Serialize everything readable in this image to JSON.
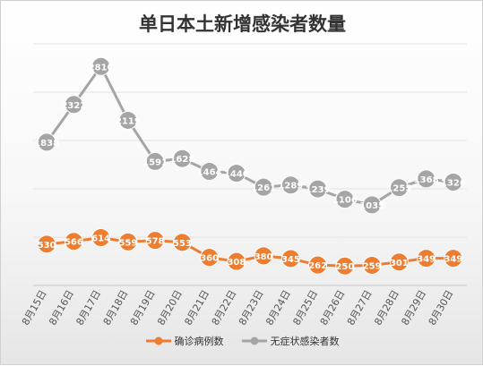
{
  "chart_data": {
    "type": "line",
    "title": "单日本土新增感染者数量",
    "xlabel": "",
    "ylabel": "",
    "grid": true,
    "legend": "bottom",
    "categories": [
      "8月15日",
      "8月16日",
      "8月17日",
      "8月18日",
      "8月19日",
      "8月20日",
      "8月21日",
      "8月22日",
      "8月23日",
      "8月24日",
      "8月25日",
      "8月26日",
      "8月27日",
      "8月28日",
      "8月29日",
      "8月30日"
    ],
    "series": [
      {
        "name": "确诊病例数",
        "color": "#ED7D31",
        "values": [
          530,
          566,
          614,
          559,
          578,
          553,
          360,
          308,
          380,
          345,
          262,
          250,
          259,
          301,
          349,
          349
        ]
      },
      {
        "name": "无症状感染者数",
        "color": "#A5A5A5",
        "values": [
          1838,
          2322,
          2810,
          2119,
          1591,
          1628,
          1464,
          1440,
          1261,
          1289,
          1239,
          1106,
          1035,
          1255,
          1368,
          1326
        ]
      }
    ],
    "ylim": [
      0,
      3100
    ]
  }
}
